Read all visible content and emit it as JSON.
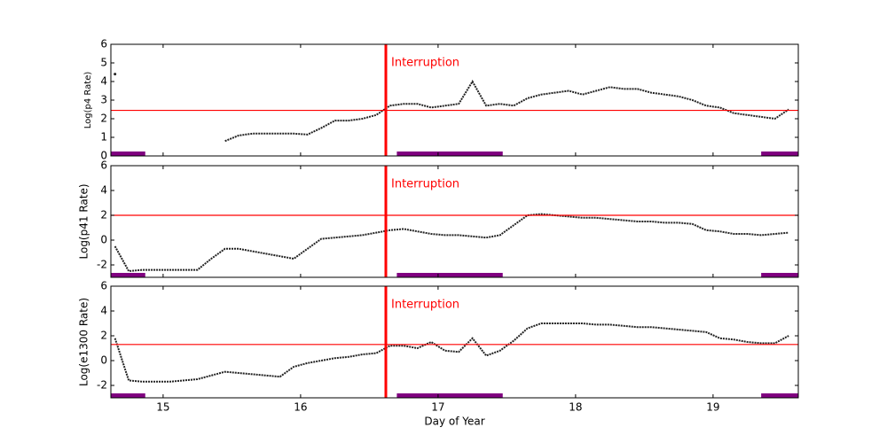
{
  "chart_data": [
    {
      "type": "line",
      "ylabel": "Log(p4 Rate)",
      "x": [
        14.65,
        14.75,
        14.85,
        14.95,
        15.05,
        15.15,
        15.25,
        15.35,
        15.45,
        15.55,
        15.65,
        15.75,
        15.85,
        15.95,
        16.05,
        16.15,
        16.25,
        16.35,
        16.45,
        16.55,
        16.65,
        16.75,
        16.85,
        16.95,
        17.05,
        17.15,
        17.25,
        17.35,
        17.45,
        17.55,
        17.65,
        17.75,
        17.85,
        17.95,
        18.05,
        18.15,
        18.25,
        18.35,
        18.45,
        18.55,
        18.65,
        18.75,
        18.85,
        18.95,
        19.05,
        19.15,
        19.25,
        19.35,
        19.45,
        19.55
      ],
      "series": [
        {
          "color": "#222222",
          "values": [
            4.4,
            null,
            null,
            null,
            null,
            null,
            null,
            null,
            0.8,
            1.1,
            1.2,
            1.2,
            1.2,
            1.2,
            1.15,
            1.5,
            1.9,
            1.9,
            2.0,
            2.2,
            2.7,
            2.8,
            2.8,
            2.6,
            2.7,
            2.8,
            4.0,
            2.7,
            2.8,
            2.7,
            3.1,
            3.3,
            3.4,
            3.5,
            3.3,
            3.5,
            3.7,
            3.6,
            3.6,
            3.4,
            3.3,
            3.2,
            3.0,
            2.7,
            2.6,
            2.3,
            2.2,
            2.1,
            2.0,
            2.5
          ]
        }
      ],
      "xlim": [
        14.62,
        19.62
      ],
      "xticks": [
        15,
        16,
        17,
        18,
        19
      ],
      "ylim": [
        0,
        6
      ],
      "yticks": [
        0,
        1,
        2,
        3,
        4,
        5,
        6
      ],
      "threshold": {
        "value": 2.45,
        "color": "#ff0000"
      },
      "event": {
        "x": 16.62,
        "label": "Interruption",
        "color": "#ff0000"
      },
      "spans": {
        "color": "#800080",
        "ranges": [
          [
            14.62,
            14.87
          ],
          [
            16.7,
            17.47
          ],
          [
            19.35,
            19.62
          ]
        ]
      }
    },
    {
      "type": "line",
      "ylabel": "Log(p41 Rate)",
      "x": [
        14.65,
        14.75,
        14.85,
        14.95,
        15.05,
        15.15,
        15.25,
        15.35,
        15.45,
        15.55,
        15.65,
        15.75,
        15.85,
        15.95,
        16.05,
        16.15,
        16.25,
        16.35,
        16.45,
        16.55,
        16.65,
        16.75,
        16.85,
        16.95,
        17.05,
        17.15,
        17.25,
        17.35,
        17.45,
        17.55,
        17.65,
        17.75,
        17.85,
        17.95,
        18.05,
        18.15,
        18.25,
        18.35,
        18.45,
        18.55,
        18.65,
        18.75,
        18.85,
        18.95,
        19.05,
        19.15,
        19.25,
        19.35,
        19.45,
        19.55
      ],
      "series": [
        {
          "color": "#222222",
          "values": [
            -0.5,
            -2.5,
            -2.4,
            -2.4,
            -2.4,
            -2.4,
            -2.4,
            -1.5,
            -0.7,
            -0.7,
            -0.9,
            -1.1,
            -1.3,
            -1.5,
            -0.7,
            0.1,
            0.2,
            0.3,
            0.4,
            0.6,
            0.8,
            0.9,
            0.7,
            0.5,
            0.4,
            0.4,
            0.3,
            0.2,
            0.4,
            1.2,
            2.0,
            2.1,
            2.0,
            1.9,
            1.8,
            1.8,
            1.7,
            1.6,
            1.5,
            1.5,
            1.4,
            1.4,
            1.3,
            0.8,
            0.7,
            0.5,
            0.5,
            0.4,
            0.5,
            0.6
          ]
        }
      ],
      "xlim": [
        14.62,
        19.62
      ],
      "xticks": [
        15,
        16,
        17,
        18,
        19
      ],
      "ylim": [
        -3,
        6
      ],
      "yticks": [
        -2,
        0,
        2,
        4,
        6
      ],
      "threshold": {
        "value": 2.0,
        "color": "#ff0000"
      },
      "event": {
        "x": 16.62,
        "label": "Interruption",
        "color": "#ff0000"
      },
      "spans": {
        "color": "#800080",
        "ranges": [
          [
            14.62,
            14.87
          ],
          [
            16.7,
            17.47
          ],
          [
            19.35,
            19.62
          ]
        ]
      }
    },
    {
      "type": "line",
      "ylabel": "Log(e1300 Rate)",
      "xlabel": "Day of Year",
      "x": [
        14.65,
        14.75,
        14.85,
        14.95,
        15.05,
        15.15,
        15.25,
        15.35,
        15.45,
        15.55,
        15.65,
        15.75,
        15.85,
        15.95,
        16.05,
        16.15,
        16.25,
        16.35,
        16.45,
        16.55,
        16.65,
        16.75,
        16.85,
        16.95,
        17.05,
        17.15,
        17.25,
        17.35,
        17.45,
        17.55,
        17.65,
        17.75,
        17.85,
        17.95,
        18.05,
        18.15,
        18.25,
        18.35,
        18.45,
        18.55,
        18.65,
        18.75,
        18.85,
        18.95,
        19.05,
        19.15,
        19.25,
        19.35,
        19.45,
        19.55
      ],
      "series": [
        {
          "color": "#222222",
          "values": [
            1.8,
            -1.6,
            -1.7,
            -1.7,
            -1.7,
            -1.6,
            -1.5,
            -1.2,
            -0.9,
            -1.0,
            -1.1,
            -1.2,
            -1.3,
            -0.5,
            -0.2,
            0.0,
            0.2,
            0.3,
            0.5,
            0.6,
            1.2,
            1.2,
            1.0,
            1.5,
            0.8,
            0.7,
            1.8,
            0.4,
            0.8,
            1.6,
            2.6,
            3.0,
            3.0,
            3.0,
            3.0,
            2.9,
            2.9,
            2.8,
            2.7,
            2.7,
            2.6,
            2.5,
            2.4,
            2.3,
            1.8,
            1.7,
            1.5,
            1.4,
            1.4,
            2.0
          ]
        }
      ],
      "xlim": [
        14.62,
        19.62
      ],
      "xticks": [
        15,
        16,
        17,
        18,
        19
      ],
      "ylim": [
        -3,
        6
      ],
      "yticks": [
        -2,
        0,
        2,
        4,
        6
      ],
      "threshold": {
        "value": 1.3,
        "color": "#ff0000"
      },
      "event": {
        "x": 16.62,
        "label": "Interruption",
        "color": "#ff0000"
      },
      "spans": {
        "color": "#800080",
        "ranges": [
          [
            14.62,
            14.87
          ],
          [
            16.7,
            17.47
          ],
          [
            19.35,
            19.62
          ]
        ]
      }
    }
  ]
}
